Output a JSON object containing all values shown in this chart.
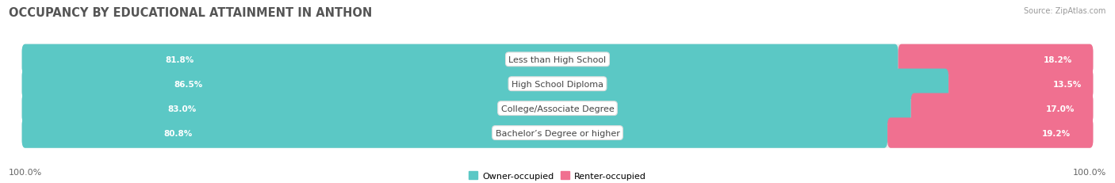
{
  "title": "OCCUPANCY BY EDUCATIONAL ATTAINMENT IN ANTHON",
  "source": "Source: ZipAtlas.com",
  "categories": [
    "Less than High School",
    "High School Diploma",
    "College/Associate Degree",
    "Bachelor’s Degree or higher"
  ],
  "owner_values": [
    81.8,
    86.5,
    83.0,
    80.8
  ],
  "renter_values": [
    18.2,
    13.5,
    17.0,
    19.2
  ],
  "owner_color": "#5BC8C5",
  "renter_color": "#F07090",
  "owner_color_light": "#A8DFE0",
  "renter_color_light": "#F5B0C5",
  "track_color": "#EBEBEB",
  "owner_label": "Owner-occupied",
  "renter_label": "Renter-occupied",
  "background_color": "#ffffff",
  "axis_label_left": "100.0%",
  "axis_label_right": "100.0%",
  "title_fontsize": 10.5,
  "label_fontsize": 8.0,
  "bar_label_fontsize": 7.5,
  "source_fontsize": 7.0,
  "cat_fontsize": 8.0
}
